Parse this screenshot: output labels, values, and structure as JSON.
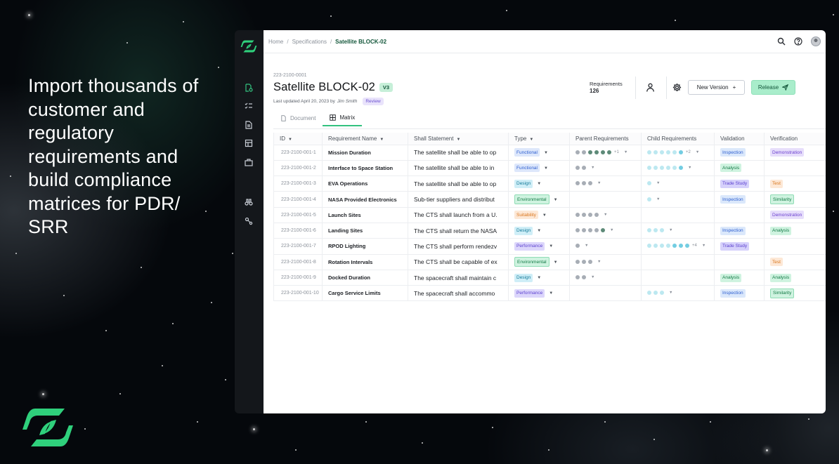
{
  "marketing": {
    "headline": "Import thousands of customer and regulatory requirements and build compliance matrices for PDR/ SRR"
  },
  "colors": {
    "brand_green": "#33c27f",
    "parent_dot": "#a7adb5",
    "parent_dot_dark": "#5d8a78",
    "child_dot": "#bce8f0",
    "child_dot_dark": "#73cde2"
  },
  "rail": {
    "icons": [
      "requirements-icon",
      "checklist-icon",
      "document-icon",
      "board-icon",
      "briefcase-icon",
      "binoculars-icon",
      "connector-icon"
    ]
  },
  "breadcrumb": {
    "home": "Home",
    "section": "Specifications",
    "current": "Satellite BLOCK-02"
  },
  "topbar_icons": [
    "search-icon",
    "help-icon",
    "avatar"
  ],
  "document": {
    "id": "223-2100-0001",
    "title": "Satellite BLOCK-02",
    "version": "V3",
    "last_updated": "Last updated April 20, 2023 by",
    "author": "Jim Smith",
    "status": "Review",
    "requirements_label": "Requirements",
    "requirements_count": "126"
  },
  "actions": {
    "new_version": "New Version",
    "new_version_icon": "+",
    "release": "Release"
  },
  "tabs": [
    {
      "label": "Document",
      "active": false
    },
    {
      "label": "Matrix",
      "active": true
    }
  ],
  "table": {
    "columns": [
      "ID",
      "Requirement Name",
      "Shall Statement",
      "Type",
      "Parent Requirements",
      "Child Requirements",
      "Validation",
      "Verification"
    ],
    "rows": [
      {
        "id": "223-2100-001-1",
        "name": "Mission Duration",
        "statement": "The satellite shall be able to op",
        "type": "Functional",
        "parent": [
          "l",
          "l",
          "d",
          "d",
          "d",
          "d"
        ],
        "parent_more": "+1",
        "child": [
          "c",
          "c",
          "c",
          "c",
          "c",
          "e"
        ],
        "child_more": "+2",
        "validation": "Inspection",
        "verification": "Demonstration"
      },
      {
        "id": "223-2100-001-2",
        "name": "Interface to Space Station",
        "statement": "The satellite shall be able to in",
        "type": "Functional",
        "parent": [
          "l",
          "l"
        ],
        "parent_more": "",
        "child": [
          "c",
          "c",
          "c",
          "c",
          "c",
          "e"
        ],
        "child_more": "",
        "validation": "Analysis",
        "verification": ""
      },
      {
        "id": "223-2100-001-3",
        "name": "EVA Operations",
        "statement": "The satellite shall be able to op",
        "type": "Design",
        "parent": [
          "l",
          "l",
          "l"
        ],
        "parent_more": "",
        "child": [
          "c"
        ],
        "child_more": "",
        "validation": "Trade Study",
        "verification": "Test"
      },
      {
        "id": "223-2100-001-4",
        "name": "NASA Provided Electronics",
        "statement": "Sub-tier suppliers and distribut",
        "type": "Environmental",
        "parent": [],
        "parent_more": "",
        "child": [
          "c"
        ],
        "child_more": "",
        "validation": "Inspection",
        "verification": "Similarity"
      },
      {
        "id": "223-2100-001-5",
        "name": "Launch Sites",
        "statement": "The CTS shall launch from a U.",
        "type": "Suitability",
        "parent": [
          "l",
          "l",
          "l",
          "l"
        ],
        "parent_more": "",
        "child": [],
        "child_more": "",
        "validation": "",
        "verification": "Demonstration"
      },
      {
        "id": "223-2100-001-6",
        "name": "Landing Sites",
        "statement": "The CTS shall return the NASA",
        "type": "Design",
        "parent": [
          "l",
          "l",
          "l",
          "l",
          "d"
        ],
        "parent_more": "",
        "child": [
          "c",
          "c",
          "c"
        ],
        "child_more": "",
        "validation": "Inspection",
        "verification": "Analysis"
      },
      {
        "id": "223-2100-001-7",
        "name": "RPOD Lighting",
        "statement": "The CTS shall perform rendezv",
        "type": "Performance",
        "parent": [
          "l"
        ],
        "parent_more": "",
        "child": [
          "c",
          "c",
          "c",
          "c",
          "e",
          "e",
          "e"
        ],
        "child_more": "+4",
        "validation": "Trade Study",
        "verification": ""
      },
      {
        "id": "223-2100-001-8",
        "name": "Rotation Intervals",
        "statement": "The CTS shall be capable of ex",
        "type": "Environmental",
        "parent": [
          "l",
          "l",
          "l"
        ],
        "parent_more": "",
        "child": [],
        "child_more": "",
        "validation": "",
        "verification": "Test"
      },
      {
        "id": "223-2100-001-9",
        "name": "Docked Duration",
        "statement": "The spacecraft shall maintain c",
        "type": "Design",
        "parent": [
          "l",
          "l"
        ],
        "parent_more": "",
        "child": [],
        "child_more": "",
        "validation": "Analysis",
        "verification": "Analysis"
      },
      {
        "id": "223-2100-001-10",
        "name": "Cargo Service Limits",
        "statement": "The spacecraft shall accommo",
        "type": "Performance",
        "parent": [],
        "parent_more": "",
        "child": [
          "c",
          "c",
          "c"
        ],
        "child_more": "",
        "validation": "Inspection",
        "verification": "Similarity"
      }
    ]
  }
}
